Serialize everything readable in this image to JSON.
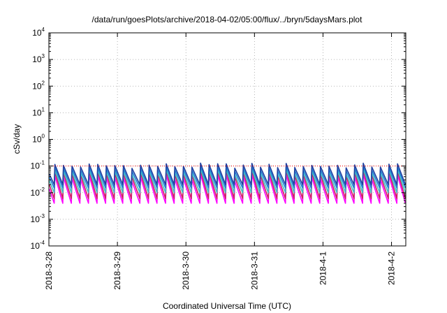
{
  "chart_data": {
    "type": "line",
    "title": "/data/run/goesPlots/archive/2018-04-02/05:00/flux/../bryn/5daysMars.plot",
    "xlabel": "Coordinated Universal Time (UTC)",
    "ylabel": "cSv/day",
    "y_scale": "log",
    "ylim": [
      0.0001,
      10000
    ],
    "y_ticks": [
      {
        "base": "10",
        "exp": "-4"
      },
      {
        "base": "10",
        "exp": "-3"
      },
      {
        "base": "10",
        "exp": "-2"
      },
      {
        "base": "10",
        "exp": "-1"
      },
      {
        "base": "10",
        "exp": "0"
      },
      {
        "base": "10",
        "exp": "1"
      },
      {
        "base": "10",
        "exp": "2"
      },
      {
        "base": "10",
        "exp": "3"
      },
      {
        "base": "10",
        "exp": "4"
      }
    ],
    "xlim": [
      "2018-03-28 00:00",
      "2018-04-02 05:00"
    ],
    "x_ticks": [
      "2018-3-28",
      "2018-3-29",
      "2018-3-30",
      "2018-3-31",
      "2018-4-1",
      "2018-4-2"
    ],
    "grid": true,
    "reference_line": {
      "y": 0.1,
      "color": "#ff0000",
      "style": "dotted"
    },
    "series": [
      {
        "color": "#ff00ff",
        "min": 0.004,
        "max": 0.05
      },
      {
        "color": "#cc2060",
        "min": 0.006,
        "max": 0.07
      },
      {
        "color": "#40c0c0",
        "min": 0.01,
        "max": 0.08
      },
      {
        "color": "#1a7fd4",
        "min": 0.015,
        "max": 0.1
      },
      {
        "color": "#2040a0",
        "min": 0.02,
        "max": 0.13
      }
    ],
    "cycles_per_day": 8
  }
}
